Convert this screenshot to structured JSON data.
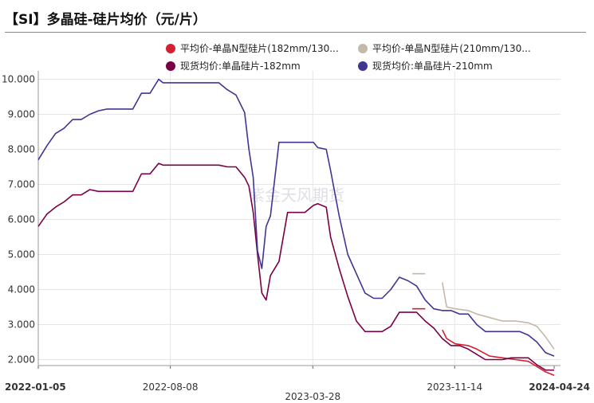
{
  "title": "【SI】多晶硅-硅片均价（元/片）",
  "watermark": "紫金天风期货",
  "colors": {
    "n182": "#d42030",
    "n210": "#c4b8a6",
    "spot182": "#7a0045",
    "spot210": "#3f3593"
  },
  "chart_data": {
    "type": "line",
    "title": "【SI】多晶硅-硅片均价（元/片）",
    "ylim": [
      1.6,
      10.1
    ],
    "y_ticks": [
      "10.000",
      "9.000",
      "8.000",
      "7.000",
      "6.000",
      "5.000",
      "4.000",
      "3.000",
      "2.000"
    ],
    "y_tick_values": [
      10,
      9,
      8,
      7,
      6,
      5,
      4,
      3,
      2
    ],
    "x_range": [
      "2022-01-05",
      "2024-04-24"
    ],
    "x_ticks": [
      "2022-01-05",
      "2022-08-08",
      "2023-03-28",
      "2023-11-14",
      "2024-04-24"
    ],
    "grid": true,
    "legend_position": "top",
    "series": [
      {
        "name": "平均价-单晶N型硅片(182mm/130...",
        "color_key": "n182",
        "x": [
          "2023-09-06",
          "2023-09-27",
          "2023-10-11",
          "2023-10-25",
          "2023-11-01",
          "2023-11-15",
          "2023-12-06",
          "2023-12-20",
          "2024-01-10",
          "2024-01-31",
          "2024-02-21",
          "2024-03-13",
          "2024-03-27",
          "2024-04-10",
          "2024-04-24"
        ],
        "y": [
          3.45,
          3.45,
          null,
          2.85,
          2.6,
          2.45,
          2.4,
          2.3,
          2.1,
          2.05,
          2.0,
          1.95,
          1.8,
          1.65,
          1.55
        ]
      },
      {
        "name": "平均价-单晶N型硅片(210mm/130...",
        "color_key": "n210",
        "x": [
          "2023-09-06",
          "2023-09-27",
          "2023-10-11",
          "2023-10-25",
          "2023-11-01",
          "2023-11-15",
          "2023-12-06",
          "2023-12-20",
          "2024-01-10",
          "2024-01-31",
          "2024-02-21",
          "2024-03-13",
          "2024-03-27",
          "2024-04-10",
          "2024-04-24"
        ],
        "y": [
          4.45,
          4.45,
          null,
          4.2,
          3.5,
          3.45,
          3.4,
          3.3,
          3.2,
          3.1,
          3.1,
          3.05,
          2.95,
          2.65,
          2.3
        ]
      },
      {
        "name": "现货均价:单晶硅片-182mm",
        "color_key": "spot182",
        "x": [
          "2022-01-05",
          "2022-01-19",
          "2022-02-02",
          "2022-02-16",
          "2022-03-02",
          "2022-03-16",
          "2022-03-30",
          "2022-04-13",
          "2022-04-27",
          "2022-05-11",
          "2022-05-25",
          "2022-06-08",
          "2022-06-22",
          "2022-07-06",
          "2022-07-20",
          "2022-07-27",
          "2022-08-03",
          "2022-08-17",
          "2022-09-07",
          "2022-09-28",
          "2022-10-12",
          "2022-10-26",
          "2022-11-09",
          "2022-11-23",
          "2022-12-07",
          "2022-12-14",
          "2022-12-21",
          "2022-12-28",
          "2023-01-04",
          "2023-01-11",
          "2023-01-18",
          "2023-02-01",
          "2023-02-15",
          "2023-03-01",
          "2023-03-15",
          "2023-03-29",
          "2023-04-05",
          "2023-04-19",
          "2023-04-26",
          "2023-05-10",
          "2023-05-24",
          "2023-06-07",
          "2023-06-21",
          "2023-07-05",
          "2023-07-19",
          "2023-08-02",
          "2023-08-16",
          "2023-08-30",
          "2023-09-13",
          "2023-09-27",
          "2023-10-11",
          "2023-10-25",
          "2023-11-08",
          "2023-11-22",
          "2023-12-06",
          "2023-12-20",
          "2024-01-03",
          "2024-01-17",
          "2024-01-31",
          "2024-02-14",
          "2024-02-28",
          "2024-03-13",
          "2024-03-27",
          "2024-04-10",
          "2024-04-24"
        ],
        "y": [
          5.8,
          6.15,
          6.35,
          6.5,
          6.7,
          6.7,
          6.85,
          6.8,
          6.8,
          6.8,
          6.8,
          6.8,
          7.3,
          7.3,
          7.6,
          7.55,
          7.55,
          7.55,
          7.55,
          7.55,
          7.55,
          7.55,
          7.5,
          7.5,
          7.2,
          6.95,
          6.2,
          5.0,
          3.9,
          3.7,
          4.4,
          4.8,
          6.2,
          6.2,
          6.2,
          6.4,
          6.45,
          6.35,
          5.5,
          4.6,
          3.8,
          3.1,
          2.8,
          2.8,
          2.8,
          2.95,
          3.35,
          3.35,
          3.35,
          3.1,
          2.9,
          2.6,
          2.4,
          2.4,
          2.3,
          2.15,
          2.0,
          2.0,
          2.0,
          2.05,
          2.05,
          2.05,
          1.85,
          1.7,
          1.7
        ]
      },
      {
        "name": "现货均价:单晶硅片-210mm",
        "color_key": "spot210",
        "x": [
          "2022-01-05",
          "2022-01-19",
          "2022-02-02",
          "2022-02-16",
          "2022-03-02",
          "2022-03-16",
          "2022-03-30",
          "2022-04-13",
          "2022-04-27",
          "2022-05-11",
          "2022-05-25",
          "2022-06-08",
          "2022-06-22",
          "2022-07-06",
          "2022-07-20",
          "2022-07-27",
          "2022-08-03",
          "2022-08-17",
          "2022-09-07",
          "2022-09-28",
          "2022-10-12",
          "2022-10-26",
          "2022-11-09",
          "2022-11-23",
          "2022-12-07",
          "2022-12-14",
          "2022-12-21",
          "2022-12-28",
          "2023-01-04",
          "2023-01-11",
          "2023-01-18",
          "2023-02-01",
          "2023-02-15",
          "2023-03-01",
          "2023-03-15",
          "2023-03-29",
          "2023-04-05",
          "2023-04-19",
          "2023-04-26",
          "2023-05-10",
          "2023-05-24",
          "2023-06-07",
          "2023-06-21",
          "2023-07-05",
          "2023-07-19",
          "2023-08-02",
          "2023-08-16",
          "2023-08-30",
          "2023-09-13",
          "2023-09-27",
          "2023-10-11",
          "2023-10-25",
          "2023-11-08",
          "2023-11-22",
          "2023-12-06",
          "2023-12-20",
          "2024-01-03",
          "2024-01-17",
          "2024-01-31",
          "2024-02-14",
          "2024-02-28",
          "2024-03-13",
          "2024-03-27",
          "2024-04-10",
          "2024-04-24"
        ],
        "y": [
          7.7,
          8.1,
          8.45,
          8.6,
          8.85,
          8.85,
          9.0,
          9.1,
          9.15,
          9.15,
          9.15,
          9.15,
          9.6,
          9.6,
          10.0,
          9.9,
          9.9,
          9.9,
          9.9,
          9.9,
          9.9,
          9.9,
          9.7,
          9.55,
          9.05,
          8.0,
          7.2,
          5.1,
          4.6,
          5.8,
          6.1,
          8.2,
          8.2,
          8.2,
          8.2,
          8.2,
          8.05,
          8.0,
          7.4,
          6.1,
          5.0,
          4.45,
          3.9,
          3.75,
          3.75,
          4.0,
          4.35,
          4.25,
          4.1,
          3.7,
          3.45,
          3.4,
          3.4,
          3.3,
          3.3,
          3.0,
          2.8,
          2.8,
          2.8,
          2.8,
          2.8,
          2.7,
          2.5,
          2.2,
          2.1
        ]
      }
    ]
  }
}
